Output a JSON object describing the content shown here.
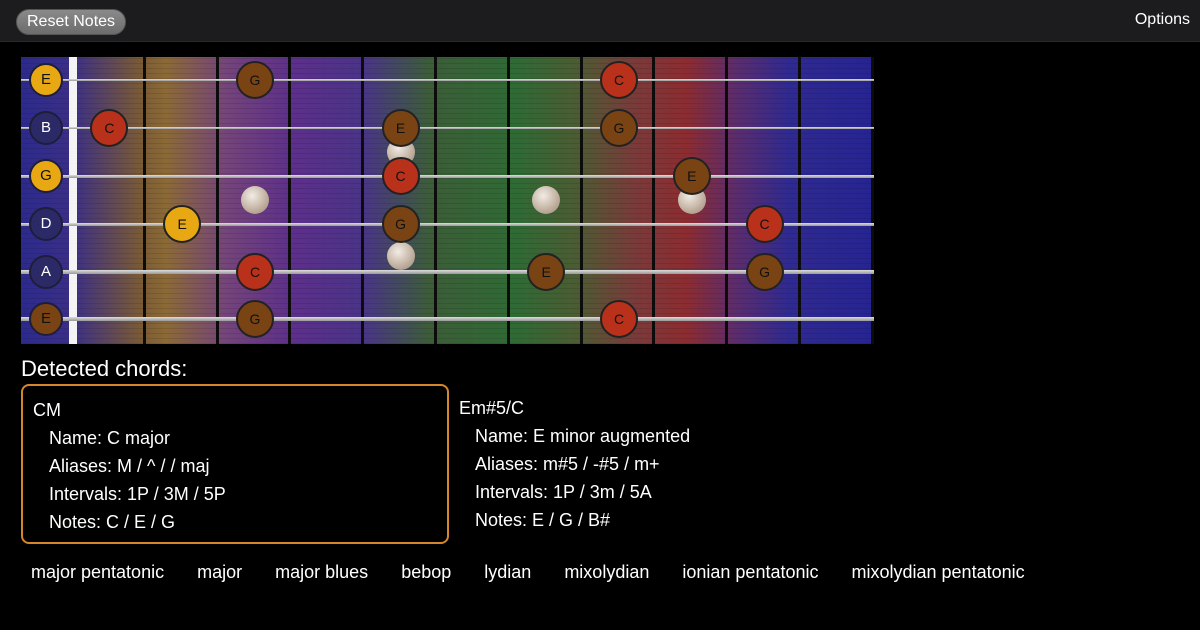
{
  "toolbar": {
    "reset_label": "Reset Notes",
    "options_label": "Options"
  },
  "open_strings": [
    {
      "label": "E",
      "style": "yellow"
    },
    {
      "label": "B",
      "style": "blue"
    },
    {
      "label": "G",
      "style": "yellow"
    },
    {
      "label": "D",
      "style": "blue"
    },
    {
      "label": "A",
      "style": "blue"
    },
    {
      "label": "E",
      "style": "brown"
    }
  ],
  "fretboard_notes": [
    {
      "string": 1,
      "fret": 3,
      "label": "G",
      "role": "chord"
    },
    {
      "string": 1,
      "fret": 8,
      "label": "C",
      "role": "root"
    },
    {
      "string": 2,
      "fret": 1,
      "label": "C",
      "role": "root"
    },
    {
      "string": 2,
      "fret": 5,
      "label": "E",
      "role": "chord"
    },
    {
      "string": 2,
      "fret": 8,
      "label": "G",
      "role": "chord"
    },
    {
      "string": 3,
      "fret": 5,
      "label": "C",
      "role": "root"
    },
    {
      "string": 3,
      "fret": 9,
      "label": "E",
      "role": "chord"
    },
    {
      "string": 4,
      "fret": 2,
      "label": "E",
      "role": "third"
    },
    {
      "string": 4,
      "fret": 5,
      "label": "G",
      "role": "chord"
    },
    {
      "string": 4,
      "fret": 10,
      "label": "C",
      "role": "root"
    },
    {
      "string": 5,
      "fret": 3,
      "label": "C",
      "role": "root"
    },
    {
      "string": 5,
      "fret": 7,
      "label": "E",
      "role": "chord"
    },
    {
      "string": 5,
      "fret": 10,
      "label": "G",
      "role": "chord"
    },
    {
      "string": 6,
      "fret": 3,
      "label": "G",
      "role": "chord"
    },
    {
      "string": 6,
      "fret": 8,
      "label": "C",
      "role": "root"
    }
  ],
  "detected_title": "Detected chords:",
  "chords": [
    {
      "symbol": "CM",
      "name": "Name: C major",
      "aliases": "Aliases: M / ^ /  / maj",
      "intervals": "Intervals: 1P / 3M / 5P",
      "notes": "Notes: C / E / G"
    },
    {
      "symbol": "Em#5/C",
      "name": "Name: E minor augmented",
      "aliases": "Aliases: m#5 / -#5 / m+",
      "intervals": "Intervals: 1P / 3m / 5A",
      "notes": "Notes: E / G / B#"
    }
  ],
  "scales": [
    "major pentatonic",
    "major",
    "major blues",
    "bebop",
    "lydian",
    "mixolydian",
    "ionian pentatonic",
    "mixolydian pentatonic"
  ]
}
